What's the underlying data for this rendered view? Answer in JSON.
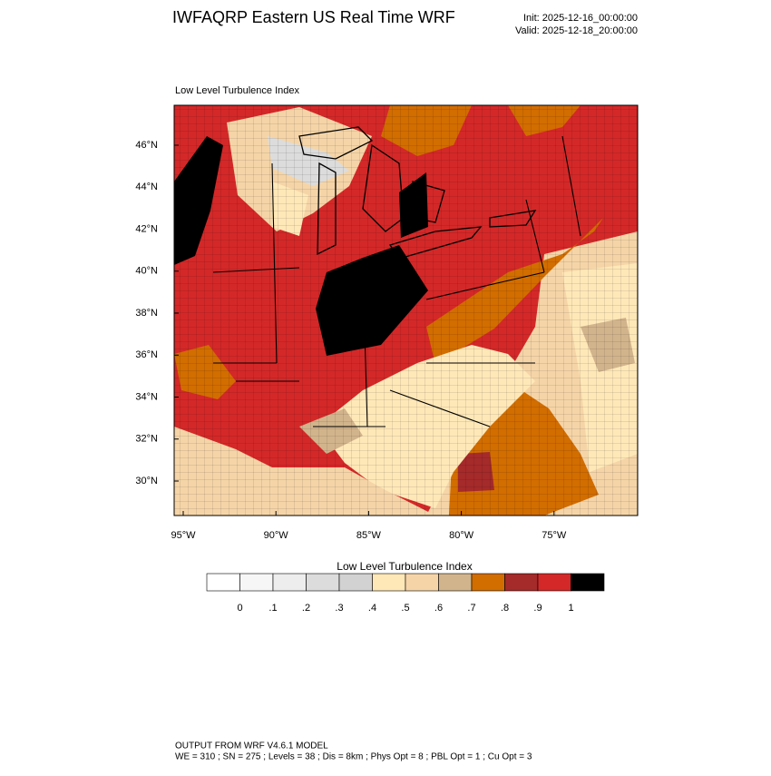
{
  "header": {
    "title": "IWFAQRP Eastern US Real Time WRF",
    "init": "Init: 2025-12-16_00:00:00",
    "valid": "Valid: 2025-12-18_20:00:00"
  },
  "map": {
    "title": "Low Level Turbulence Index",
    "lon_labels": [
      {
        "value": -95,
        "label": "95°W"
      },
      {
        "value": -90,
        "label": "90°W"
      },
      {
        "value": -85,
        "label": "85°W"
      },
      {
        "value": -80,
        "label": "80°W"
      },
      {
        "value": -75,
        "label": "75°W"
      }
    ],
    "lat_labels": [
      {
        "value": 46,
        "label": "46°N"
      },
      {
        "value": 44,
        "label": "44°N"
      },
      {
        "value": 42,
        "label": "42°N"
      },
      {
        "value": 40,
        "label": "40°N"
      },
      {
        "value": 38,
        "label": "38°N"
      },
      {
        "value": 36,
        "label": "36°N"
      },
      {
        "value": 34,
        "label": "34°N"
      },
      {
        "value": 32,
        "label": "32°N"
      },
      {
        "value": 30,
        "label": "30°N"
      }
    ]
  },
  "colorbar": {
    "title": "Low Level Turbulence Index",
    "colors": [
      "#ffffff",
      "#f6f6f6",
      "#ededed",
      "#dcdcdc",
      "#d2d2d2",
      "#ffe8b8",
      "#f5d5a8",
      "#d2b48c",
      "#d26d00",
      "#a52a2a",
      "#d42828",
      "#000000"
    ],
    "ticks": [
      0,
      {
        "value": 0.1,
        "label": ".1"
      },
      {
        "value": 0.2,
        "label": ".2"
      },
      {
        "value": 0.3,
        "label": ".3"
      },
      {
        "value": 0.4,
        "label": ".4"
      },
      {
        "value": 0.5,
        "label": ".5"
      },
      {
        "value": 0.6,
        "label": ".6"
      },
      {
        "value": 0.7,
        "label": ".7"
      },
      {
        "value": 0.8,
        "label": ".8"
      },
      {
        "value": 0.9,
        "label": ".9"
      },
      1
    ]
  },
  "footer": {
    "line1": "OUTPUT FROM WRF V4.6.1 MODEL",
    "line2": "WE = 310 ; SN = 275 ; Levels = 38 ; Dis = 8km ; Phys Opt = 8 ; PBL Opt = 1 ; Cu Opt = 3"
  }
}
